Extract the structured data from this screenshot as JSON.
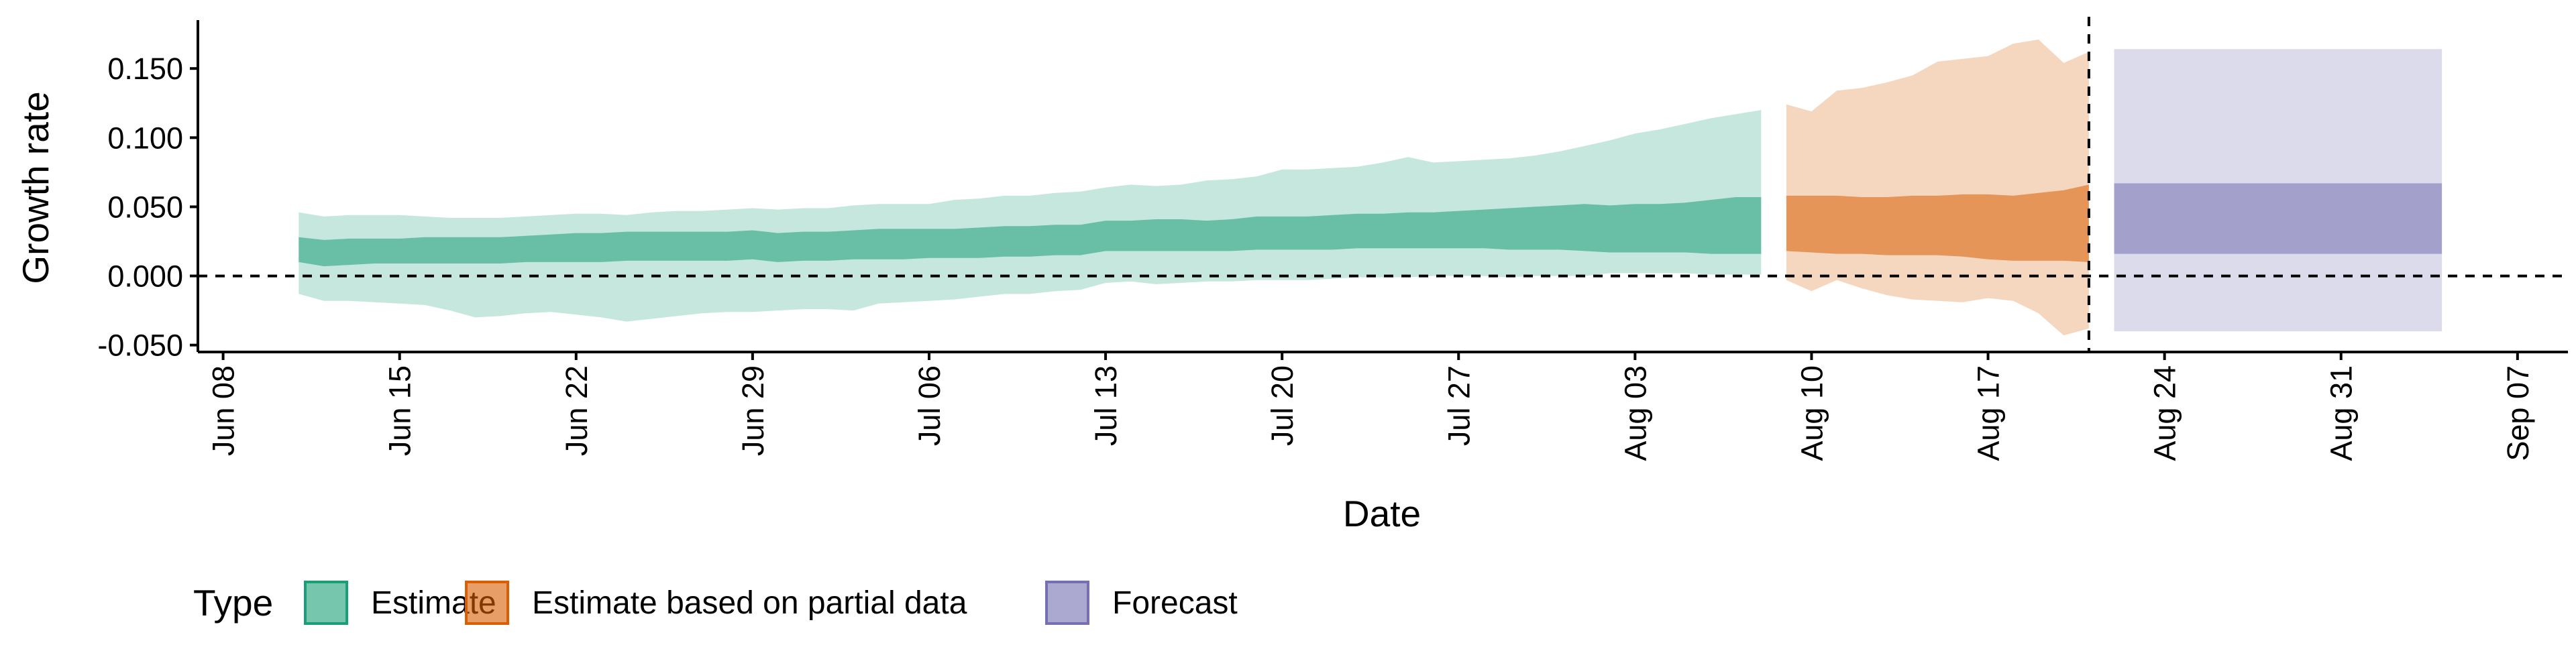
{
  "chart_data": {
    "type": "area",
    "xlabel": "Date",
    "ylabel": "Growth rate",
    "x_ticks": [
      "Jun 08",
      "Jun 15",
      "Jun 22",
      "Jun 29",
      "Jul 06",
      "Jul 13",
      "Jul 20",
      "Jul 27",
      "Aug 03",
      "Aug 10",
      "Aug 17",
      "Aug 24",
      "Aug 31",
      "Sep 07"
    ],
    "y_ticks": [
      "-0.050",
      "0.000",
      "0.050",
      "0.100",
      "0.150"
    ],
    "xlim": [
      "2020-06-07",
      "2020-09-09"
    ],
    "ylim": [
      -0.055,
      0.185
    ],
    "reference_lines": {
      "y": 0.0,
      "x": "2020-08-21"
    },
    "legend": {
      "title": "Type",
      "position": "bottom",
      "entries": [
        {
          "label": "Estimate",
          "color": "#1b9e77"
        },
        {
          "label": "Estimate based on partial data",
          "color": "#d95f02"
        },
        {
          "label": "Forecast",
          "color": "#7570b3"
        }
      ]
    },
    "series": [
      {
        "name": "Estimate",
        "color": "#1b9e77",
        "x": [
          "2020-06-11",
          "2020-06-12",
          "2020-06-13",
          "2020-06-14",
          "2020-06-15",
          "2020-06-16",
          "2020-06-17",
          "2020-06-18",
          "2020-06-19",
          "2020-06-20",
          "2020-06-21",
          "2020-06-22",
          "2020-06-23",
          "2020-06-24",
          "2020-06-25",
          "2020-06-26",
          "2020-06-27",
          "2020-06-28",
          "2020-06-29",
          "2020-06-30",
          "2020-07-01",
          "2020-07-02",
          "2020-07-03",
          "2020-07-04",
          "2020-07-05",
          "2020-07-06",
          "2020-07-07",
          "2020-07-08",
          "2020-07-09",
          "2020-07-10",
          "2020-07-11",
          "2020-07-12",
          "2020-07-13",
          "2020-07-14",
          "2020-07-15",
          "2020-07-16",
          "2020-07-17",
          "2020-07-18",
          "2020-07-19",
          "2020-07-20",
          "2020-07-21",
          "2020-07-22",
          "2020-07-23",
          "2020-07-24",
          "2020-07-25",
          "2020-07-26",
          "2020-07-27",
          "2020-07-28",
          "2020-07-29",
          "2020-07-30",
          "2020-07-31",
          "2020-08-01",
          "2020-08-02",
          "2020-08-03",
          "2020-08-04",
          "2020-08-05",
          "2020-08-06",
          "2020-08-07",
          "2020-08-08"
        ],
        "lower_90": [
          -0.013,
          -0.018,
          -0.018,
          -0.019,
          -0.02,
          -0.021,
          -0.025,
          -0.03,
          -0.029,
          -0.027,
          -0.026,
          -0.028,
          -0.03,
          -0.033,
          -0.031,
          -0.029,
          -0.027,
          -0.026,
          -0.026,
          -0.025,
          -0.024,
          -0.024,
          -0.025,
          -0.02,
          -0.019,
          -0.018,
          -0.017,
          -0.015,
          -0.013,
          -0.013,
          -0.011,
          -0.01,
          -0.005,
          -0.004,
          -0.006,
          -0.005,
          -0.004,
          -0.004,
          -0.003,
          -0.003,
          -0.003,
          -0.002,
          -0.001,
          -0.001,
          -0.001,
          0.0,
          0.0,
          0.0,
          -0.001,
          0.0,
          0.0,
          0.0,
          0.002,
          0.002,
          0.002,
          0.002,
          0.001,
          0.001,
          0.001
        ],
        "lower_50": [
          0.01,
          0.007,
          0.008,
          0.009,
          0.009,
          0.009,
          0.009,
          0.009,
          0.009,
          0.01,
          0.01,
          0.01,
          0.01,
          0.011,
          0.011,
          0.011,
          0.011,
          0.011,
          0.012,
          0.01,
          0.011,
          0.011,
          0.012,
          0.012,
          0.012,
          0.013,
          0.013,
          0.013,
          0.014,
          0.014,
          0.015,
          0.015,
          0.018,
          0.018,
          0.018,
          0.018,
          0.018,
          0.018,
          0.019,
          0.019,
          0.019,
          0.019,
          0.02,
          0.02,
          0.02,
          0.02,
          0.02,
          0.02,
          0.019,
          0.019,
          0.019,
          0.018,
          0.017,
          0.017,
          0.017,
          0.017,
          0.016,
          0.016,
          0.016
        ],
        "upper_50": [
          0.028,
          0.026,
          0.027,
          0.027,
          0.027,
          0.028,
          0.028,
          0.028,
          0.028,
          0.029,
          0.03,
          0.031,
          0.031,
          0.032,
          0.032,
          0.032,
          0.032,
          0.032,
          0.033,
          0.031,
          0.032,
          0.032,
          0.033,
          0.034,
          0.034,
          0.034,
          0.034,
          0.035,
          0.036,
          0.036,
          0.037,
          0.037,
          0.04,
          0.04,
          0.041,
          0.041,
          0.04,
          0.041,
          0.043,
          0.043,
          0.043,
          0.044,
          0.045,
          0.045,
          0.046,
          0.046,
          0.047,
          0.048,
          0.049,
          0.05,
          0.051,
          0.052,
          0.051,
          0.052,
          0.052,
          0.053,
          0.055,
          0.057,
          0.057
        ],
        "upper_90": [
          0.046,
          0.043,
          0.044,
          0.044,
          0.044,
          0.043,
          0.042,
          0.042,
          0.042,
          0.043,
          0.044,
          0.045,
          0.045,
          0.044,
          0.046,
          0.047,
          0.047,
          0.048,
          0.049,
          0.048,
          0.049,
          0.049,
          0.051,
          0.052,
          0.052,
          0.052,
          0.055,
          0.056,
          0.058,
          0.058,
          0.06,
          0.061,
          0.064,
          0.066,
          0.065,
          0.066,
          0.069,
          0.07,
          0.072,
          0.077,
          0.077,
          0.078,
          0.079,
          0.082,
          0.086,
          0.082,
          0.083,
          0.084,
          0.085,
          0.087,
          0.09,
          0.094,
          0.098,
          0.103,
          0.106,
          0.11,
          0.114,
          0.117,
          0.12
        ]
      },
      {
        "name": "Estimate based on partial data",
        "color": "#d95f02",
        "x": [
          "2020-08-09",
          "2020-08-10",
          "2020-08-11",
          "2020-08-12",
          "2020-08-13",
          "2020-08-14",
          "2020-08-15",
          "2020-08-16",
          "2020-08-17",
          "2020-08-18",
          "2020-08-19",
          "2020-08-20",
          "2020-08-21"
        ],
        "lower_90": [
          -0.003,
          -0.011,
          -0.003,
          -0.009,
          -0.014,
          -0.017,
          -0.018,
          -0.019,
          -0.016,
          -0.018,
          -0.027,
          -0.043,
          -0.038
        ],
        "lower_50": [
          0.018,
          0.017,
          0.016,
          0.016,
          0.015,
          0.015,
          0.015,
          0.014,
          0.012,
          0.011,
          0.011,
          0.011,
          0.01
        ],
        "upper_50": [
          0.058,
          0.058,
          0.058,
          0.057,
          0.057,
          0.058,
          0.058,
          0.059,
          0.059,
          0.058,
          0.06,
          0.062,
          0.066
        ],
        "upper_90": [
          0.124,
          0.119,
          0.134,
          0.136,
          0.14,
          0.145,
          0.155,
          0.157,
          0.159,
          0.168,
          0.171,
          0.154,
          0.162
        ]
      },
      {
        "name": "Forecast",
        "color": "#7570b3",
        "x": [
          "2020-08-22",
          "2020-09-04"
        ],
        "lower_90": [
          -0.04,
          -0.04
        ],
        "lower_50": [
          0.016,
          0.016
        ],
        "upper_50": [
          0.067,
          0.067
        ],
        "upper_90": [
          0.164,
          0.164
        ]
      }
    ]
  }
}
